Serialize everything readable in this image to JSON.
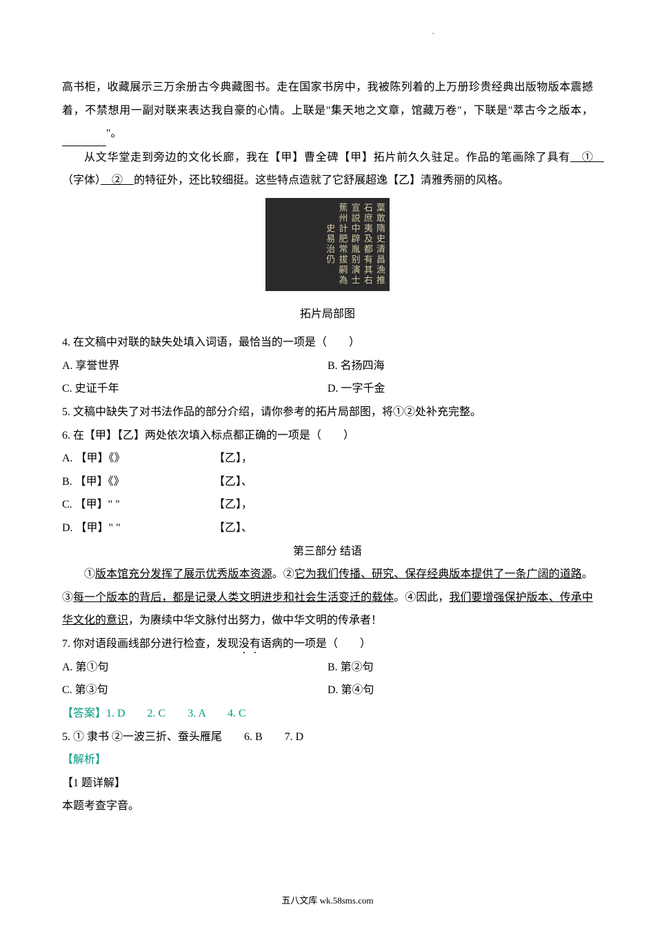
{
  "topMark": "·",
  "para1": "高书柜，收藏展示三万余册古今典藏图书。走在国家书房中，我被陈列着的上万册珍贵经典出版物版本震撼着，不禁想用一副对联来表达我自豪的心情。上联是\"集天地之文章，馆藏万卷\"，下联是\"萃古今之版本，",
  "para1_end": "\"。",
  "para2_a": "从文华堂走到旁边的文化长廊，我在【甲】曹全碑【甲】拓片前久久驻足。作品的笔画除了具有",
  "para2_b": "（字体）",
  "para2_c": "的特征外，还比较细挺。这些特点造就了它舒展超逸【乙】清雅秀丽的风格。",
  "circ1": "①",
  "circ2": "②",
  "rubbing_chars": "葉敢隋史清昌漁推石庶夷及都有其右宣説中辟胤别演士蕉州計肥常拔嗣為史易治仍",
  "caption": "拓片局部图",
  "q4": "4. 在文稿中对联的缺失处填入词语，最恰当的一项是（　　）",
  "q4a": "A. 享誉世界",
  "q4b": "B. 名扬四海",
  "q4c": "C. 史证千年",
  "q4d": "D. 一字千金",
  "q5": "5. 文稿中缺失了对书法作品的部分介绍，请你参考的拓片局部图，将①②处补充完整。",
  "q6": "6. 在【甲】【乙】两处依次填入标点都正确的一项是（　　）",
  "q6a_1": "A. 【甲】《》",
  "q6a_2": "【乙】，",
  "q6b_1": "B. 【甲】《》",
  "q6b_2": "【乙】、",
  "q6c_1": "C. 【甲】\" \"",
  "q6c_2": "【乙】，",
  "q6d_1": "D. 【甲】\" \"",
  "q6d_2": "【乙】、",
  "section3": "第三部分 结语",
  "conc1a": "①",
  "conc1b": "版本馆充分发挥了展示优秀版本资源",
  "conc1c": "。②",
  "conc1d": "它为我们传播、研究、保存经典版本提供了一条广阔的道路",
  "conc1e": "。③",
  "conc1f": "每一个版本的背后，都是记录人类文明进步和社会生活变迁的载体",
  "conc1g": "。④因此，",
  "conc1h": "我们要增强保护版本、传承中华文化的意识",
  "conc1i": "，为赓续中华文脉付出努力，做中华文明的传承者！",
  "q7a": "7. 你对语段画线部分进行检查，发现",
  "q7b": "没有",
  "q7c": "语病的一项是（　　）",
  "q7oa": "A. 第①句",
  "q7ob": "B. 第②句",
  "q7oc": "C. 第③句",
  "q7od": "D. 第④句",
  "ans1": "【答案】1. D　　2. C　　3. A　　4. C",
  "ans2": "5. ① 隶书 ②一波三折、蚕头雁尾　　6. B　　7. D",
  "jiexi": "【解析】",
  "detail": "【1 题详解】",
  "detail_text": "本题考查字音。",
  "footer": "五八文库 wk.58sms.com"
}
